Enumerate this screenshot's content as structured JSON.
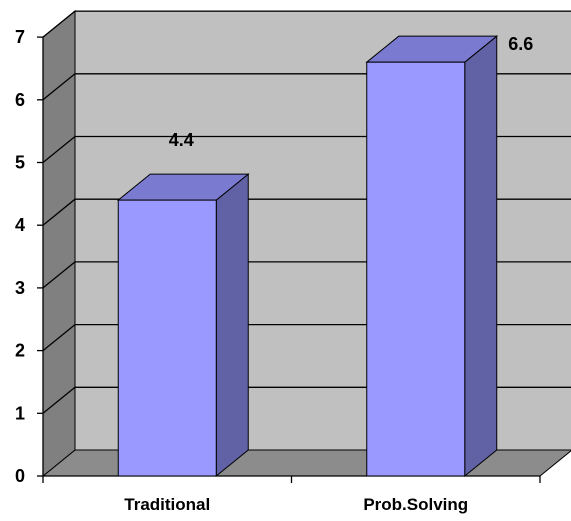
{
  "chart_data": {
    "type": "bar",
    "style": "3d-column",
    "categories": [
      "Traditional",
      "Prob.Solving"
    ],
    "values": [
      4.4,
      6.6
    ],
    "data_labels": [
      "4.4",
      "6.6"
    ],
    "y_ticks": [
      "0",
      "1",
      "2",
      "3",
      "4",
      "5",
      "6",
      "7"
    ],
    "ylim": [
      0,
      7
    ],
    "grid": true,
    "legend": "none",
    "colors": {
      "bar_front": "#9999ff",
      "bar_side": "#6161a6",
      "bar_top": "#7a7ad0",
      "back_wall": "#c0c0c0",
      "side_wall": "#808080",
      "floor": "#8c8c8c"
    }
  }
}
